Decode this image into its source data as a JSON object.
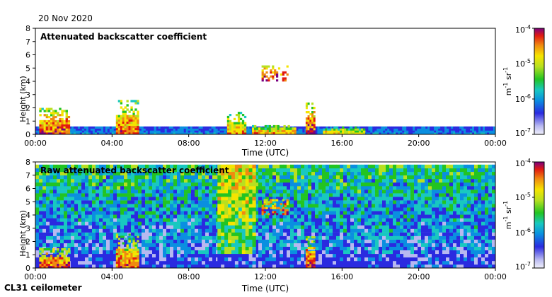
{
  "header": {
    "date": "20 Nov 2020"
  },
  "footer": {
    "instrument": "CL31 ceilometer"
  },
  "chart_data": [
    {
      "type": "heatmap",
      "title": "Attenuated backscatter coefficient",
      "xlabel": "Time (UTC)",
      "ylabel": "Height (km)",
      "xticks": [
        "00:00",
        "04:00",
        "08:00",
        "12:00",
        "16:00",
        "20:00",
        "00:00"
      ],
      "yticks": [
        "0",
        "1",
        "2",
        "3",
        "4",
        "5",
        "6",
        "7",
        "8"
      ],
      "ylim": [
        0,
        8
      ],
      "xlim_hours": [
        0,
        24
      ],
      "colorbar": {
        "label": "m-1 sr-1",
        "label_base": "m",
        "label_exp1": "-1",
        "label_mid": " sr",
        "label_exp2": "-1",
        "ticks": [
          {
            "base": "10",
            "exp": "-4"
          },
          {
            "base": "10",
            "exp": "-5"
          },
          {
            "base": "10",
            "exp": "-6"
          },
          {
            "base": "10",
            "exp": "-7"
          }
        ],
        "range": [
          "1e-7",
          "1e-4"
        ],
        "scale": "log"
      },
      "features": [
        {
          "name": "boundary-layer",
          "start_h": 0,
          "end_h": 24,
          "top_km": 0.6,
          "level": 0.3
        },
        {
          "name": "low-cloud-0h",
          "start_h": 0.2,
          "end_h": 1.8,
          "top_km": 2.0,
          "level": 0.9
        },
        {
          "name": "low-cloud-4h",
          "start_h": 4.2,
          "end_h": 5.4,
          "top_km": 2.6,
          "level": 0.85
        },
        {
          "name": "low-cloud-10h",
          "start_h": 10.0,
          "end_h": 11.0,
          "top_km": 1.7,
          "level": 0.8
        },
        {
          "name": "stratus-12h",
          "start_h": 11.3,
          "end_h": 13.6,
          "top_km": 0.7,
          "level": 0.75
        },
        {
          "name": "cloud-14h",
          "start_h": 14.1,
          "end_h": 14.6,
          "top_km": 2.4,
          "level": 0.9
        },
        {
          "name": "layer-16h",
          "start_h": 15.0,
          "end_h": 17.2,
          "top_km": 0.6,
          "level": 0.7
        },
        {
          "name": "elevated-12h",
          "start_h": 11.8,
          "end_h": 13.2,
          "top_km": 5.2,
          "bottom_km": 4.0,
          "level": 0.95
        }
      ]
    },
    {
      "type": "heatmap",
      "title": "Raw attenuated backscatter coefficient",
      "xlabel": "Time (UTC)",
      "ylabel": "Height (km)",
      "xticks": [
        "00:00",
        "04:00",
        "08:00",
        "12:00",
        "16:00",
        "20:00",
        "00:00"
      ],
      "yticks": [
        "0",
        "1",
        "2",
        "3",
        "4",
        "5",
        "6",
        "7",
        "8"
      ],
      "ylim": [
        0,
        8
      ],
      "xlim_hours": [
        0,
        24
      ],
      "colorbar": {
        "label": "m-1 sr-1",
        "label_base": "m",
        "label_exp1": "-1",
        "label_mid": " sr",
        "label_exp2": "-1",
        "ticks": [
          {
            "base": "10",
            "exp": "-4"
          },
          {
            "base": "10",
            "exp": "-5"
          },
          {
            "base": "10",
            "exp": "-6"
          },
          {
            "base": "10",
            "exp": "-7"
          }
        ],
        "range": [
          "1e-7",
          "1e-4"
        ],
        "scale": "log"
      },
      "features": [
        {
          "name": "noise-background",
          "start_h": 0,
          "end_h": 24,
          "top_km": 7.8,
          "level": 0.45
        },
        {
          "name": "noise-plume-10h",
          "start_h": 9.5,
          "end_h": 11.5,
          "top_km": 7.8,
          "level": 0.7
        },
        {
          "name": "low-cloud-0h",
          "start_h": 0.2,
          "end_h": 1.8,
          "top_km": 1.5,
          "level": 0.9
        },
        {
          "name": "low-cloud-4h",
          "start_h": 4.2,
          "end_h": 5.4,
          "top_km": 2.6,
          "level": 0.85
        },
        {
          "name": "cloud-14h",
          "start_h": 14.1,
          "end_h": 14.6,
          "top_km": 2.4,
          "level": 0.9
        },
        {
          "name": "elevated-12h",
          "start_h": 11.8,
          "end_h": 13.2,
          "top_km": 5.2,
          "bottom_km": 4.0,
          "level": 0.95
        }
      ]
    }
  ]
}
